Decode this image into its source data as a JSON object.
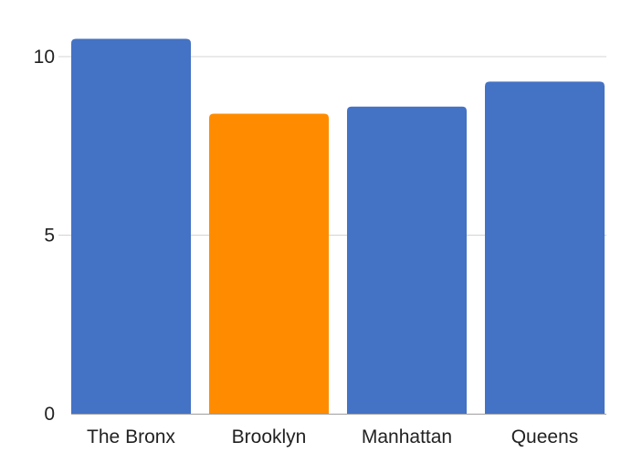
{
  "chart_data": {
    "type": "bar",
    "categories": [
      "The Bronx",
      "Brooklyn",
      "Manhattan",
      "Queens"
    ],
    "values": [
      10.5,
      8.4,
      8.6,
      9.3
    ],
    "highlight_index": 1,
    "colors": {
      "default": "#4472c4",
      "highlight": "#ff8c00"
    },
    "title": "",
    "xlabel": "",
    "ylabel": "",
    "ylim": [
      0,
      10.5
    ],
    "yticks": [
      0,
      5,
      10
    ],
    "grid": true,
    "legend": "none"
  }
}
